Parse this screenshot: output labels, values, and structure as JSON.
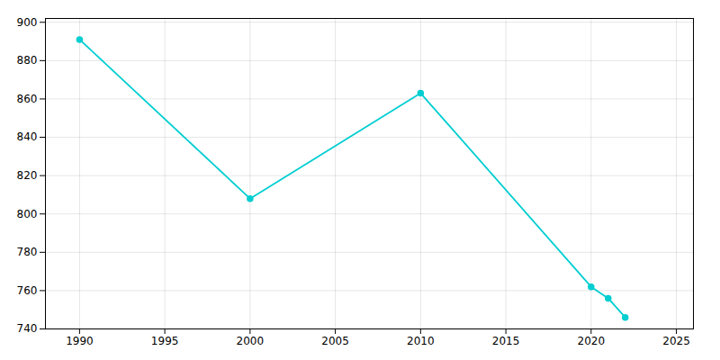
{
  "chart_data": {
    "type": "line",
    "x": [
      1990,
      2000,
      2010,
      2020,
      2021,
      2022
    ],
    "values": [
      891,
      808,
      863,
      762,
      756,
      746
    ],
    "color": "#00CED1",
    "marker": "circle",
    "xlim": [
      1988,
      2026
    ],
    "ylim": [
      740,
      902
    ],
    "xticks": [
      1990,
      1995,
      2000,
      2005,
      2010,
      2015,
      2020,
      2025
    ],
    "yticks": [
      740,
      760,
      780,
      800,
      820,
      840,
      860,
      880,
      900
    ],
    "grid": true
  }
}
